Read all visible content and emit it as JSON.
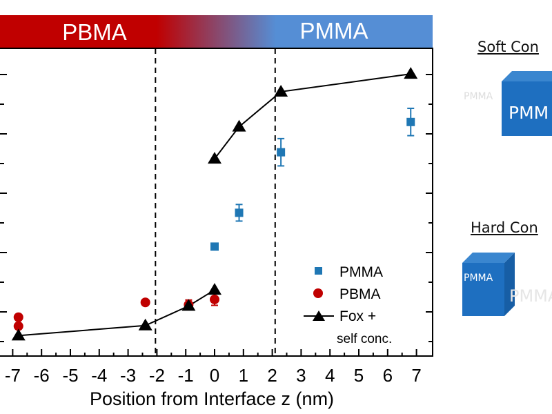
{
  "chart_data": {
    "type": "scatter",
    "xlabel": "Position from Interface z (nm)",
    "ylabel": "",
    "xlim": [
      -7.4,
      7.6
    ],
    "ylim": [
      -0.75,
      4.45
    ],
    "x_ticks": [
      "-7",
      "-6",
      "-5",
      "-4",
      "-3",
      "-2",
      "-1",
      "0",
      "1",
      "2",
      "3",
      "4",
      "5",
      "6",
      "7"
    ],
    "y_ticks_labeled": false,
    "region_labels": {
      "left": "PBMA",
      "right": "PMMA"
    },
    "colors": {
      "pbma": "#c00000",
      "pmma_band": "#558ed5",
      "pmma_marker": "#1f77b4",
      "fox": "#000000"
    },
    "interface_lines_x": [
      -2.05,
      2.1
    ],
    "legend_position": "bottom-right",
    "series": [
      {
        "name": "PMMA",
        "marker": "square",
        "points": [
          {
            "x": 0,
            "y": 1.1,
            "err": 0.05
          },
          {
            "x": 0.85,
            "y": 1.67,
            "err": 0.14
          },
          {
            "x": 2.3,
            "y": 2.69,
            "err": 0.23
          },
          {
            "x": 6.8,
            "y": 3.2,
            "err": 0.23
          }
        ]
      },
      {
        "name": "PBMA",
        "marker": "circle",
        "points": [
          {
            "x": -6.8,
            "y": -0.09,
            "err": 0.03
          },
          {
            "x": -6.8,
            "y": -0.24,
            "err": 0.03
          },
          {
            "x": -2.4,
            "y": 0.16,
            "err": 0.03
          },
          {
            "x": -0.9,
            "y": 0.12,
            "err": 0.08
          },
          {
            "x": 0,
            "y": 0.21,
            "err": 0.1
          }
        ]
      },
      {
        "name": "Fox + self conc.",
        "marker": "triangle",
        "segments": [
          [
            {
              "x": -6.8,
              "y": -0.4
            },
            {
              "x": -2.4,
              "y": -0.23
            },
            {
              "x": -0.9,
              "y": 0.1
            },
            {
              "x": 0,
              "y": 0.37
            }
          ],
          [
            {
              "x": 0,
              "y": 2.58
            },
            {
              "x": 0.85,
              "y": 3.12
            },
            {
              "x": 2.3,
              "y": 3.71
            },
            {
              "x": 6.8,
              "y": 4.01
            }
          ]
        ]
      }
    ],
    "legend": {
      "pmma": "PMMA",
      "pbma": "PBMA",
      "fox_line1": "Fox +",
      "fox_line2": "self conc."
    }
  },
  "side_panel": {
    "soft_title": "Soft Con",
    "soft_cube_label": "PMM",
    "soft_faint_label": "PMMA",
    "hard_title": "Hard Con",
    "hard_cube_label": "PMMA",
    "hard_faint_label": "PMMA"
  }
}
